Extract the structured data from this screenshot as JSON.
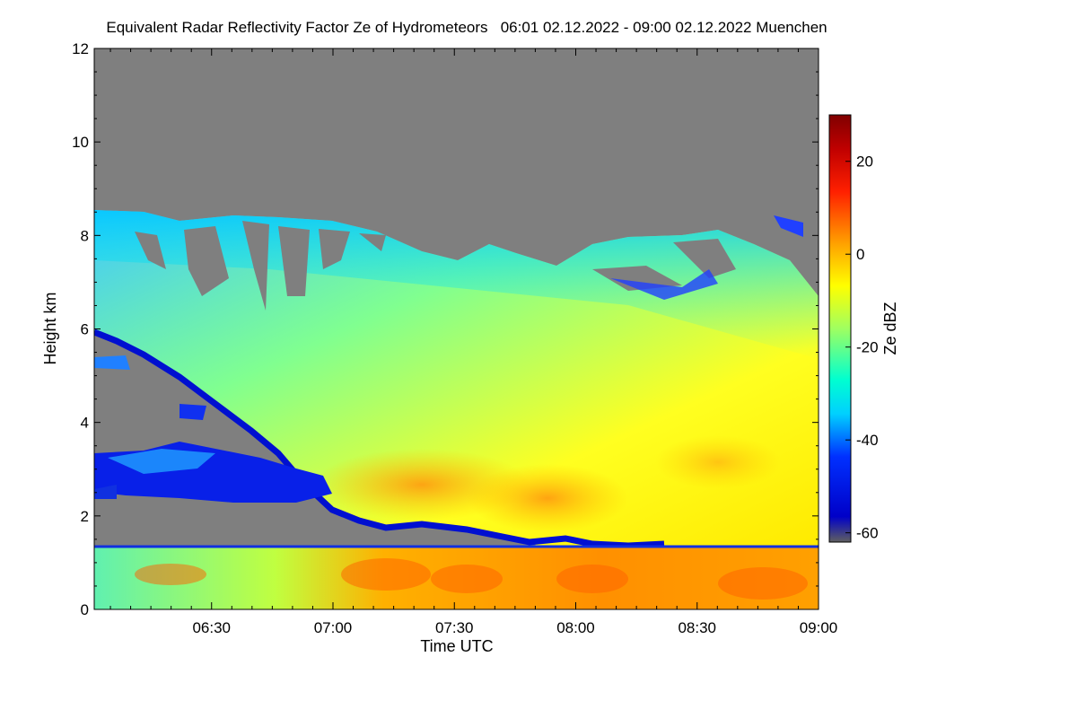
{
  "chart_data": {
    "type": "heatmap",
    "title": "Equivalent Radar Reflectivity Factor Ze of Hydrometeors   06:01 02.12.2022 - 09:00 02.12.2022 Muenchen",
    "xlabel": "Time UTC",
    "ylabel": "Height km",
    "colorbar_label": "Ze dBZ",
    "x_range": [
      "06:01",
      "09:00"
    ],
    "x_ticks": [
      "06:30",
      "07:00",
      "07:30",
      "08:00",
      "08:30",
      "09:00"
    ],
    "ylim": [
      0,
      12
    ],
    "y_ticks": [
      "0",
      "2",
      "4",
      "6",
      "8",
      "10",
      "12"
    ],
    "colorbar_range": [
      -62,
      30
    ],
    "colorbar_ticks": [
      "-60",
      "-40",
      "-20",
      "0",
      "20"
    ],
    "no_data_color": "#7f7f7f",
    "colormap": [
      "#606060",
      "#0000c8",
      "#0040ff",
      "#00d0ff",
      "#00ffe0",
      "#80ff80",
      "#ffff00",
      "#ffa000",
      "#ff3000",
      "#c00000",
      "#800000"
    ],
    "features": {
      "cloud_top_km": [
        {
          "t": "06:01",
          "h": 8.4
        },
        {
          "t": "06:30",
          "h": 8.4
        },
        {
          "t": "07:00",
          "h": 8.3
        },
        {
          "t": "07:15",
          "h": 7.8
        },
        {
          "t": "07:30",
          "h": 7.3
        },
        {
          "t": "07:50",
          "h": 7.0
        },
        {
          "t": "08:10",
          "h": 8.0
        },
        {
          "t": "08:30",
          "h": 7.8
        },
        {
          "t": "08:45",
          "h": 7.3
        },
        {
          "t": "09:00",
          "h": 6.5
        }
      ],
      "cloud_base_km": [
        {
          "t": "06:01",
          "h": 5.9
        },
        {
          "t": "06:15",
          "h": 5.4
        },
        {
          "t": "06:30",
          "h": 4.9
        },
        {
          "t": "06:45",
          "h": 4.0
        },
        {
          "t": "06:55",
          "h": 3.2
        },
        {
          "t": "07:05",
          "h": 2.3
        },
        {
          "t": "07:15",
          "h": 1.8
        },
        {
          "t": "07:30",
          "h": 1.8
        },
        {
          "t": "07:45",
          "h": 1.5
        },
        {
          "t": "07:50",
          "h": 1.3
        }
      ],
      "boundary_layer_top_km": 1.3,
      "low_cloud_layer_km": [
        2.3,
        3.3
      ],
      "low_cloud_layer_end": "07:00"
    }
  }
}
